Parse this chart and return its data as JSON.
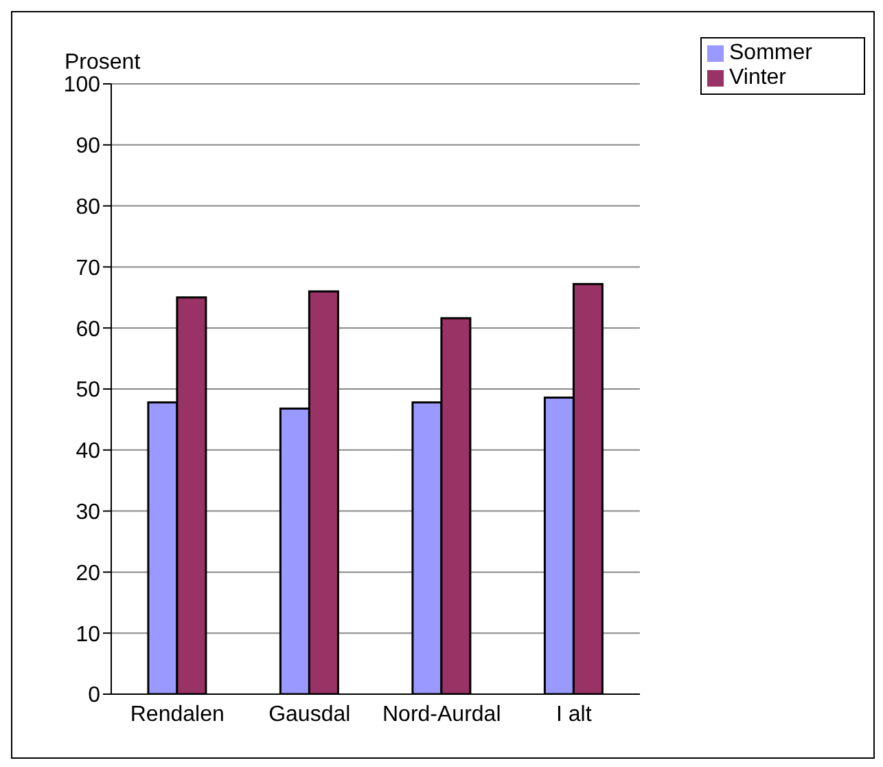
{
  "chart_data": {
    "type": "bar",
    "ylabel": "Prosent",
    "categories": [
      "Rendalen",
      "Gausdal",
      "Nord-Aurdal",
      "I alt"
    ],
    "series": [
      {
        "name": "Sommer",
        "color": "#9999ff",
        "values": [
          47.8,
          46.8,
          47.8,
          48.6
        ]
      },
      {
        "name": "Vinter",
        "color": "#993366",
        "values": [
          65,
          66,
          61.6,
          67.2
        ]
      }
    ],
    "ylim": [
      0,
      100
    ],
    "yticks": [
      0,
      10,
      20,
      30,
      40,
      50,
      60,
      70,
      80,
      90,
      100
    ],
    "grid": "y",
    "legend": "top right"
  }
}
